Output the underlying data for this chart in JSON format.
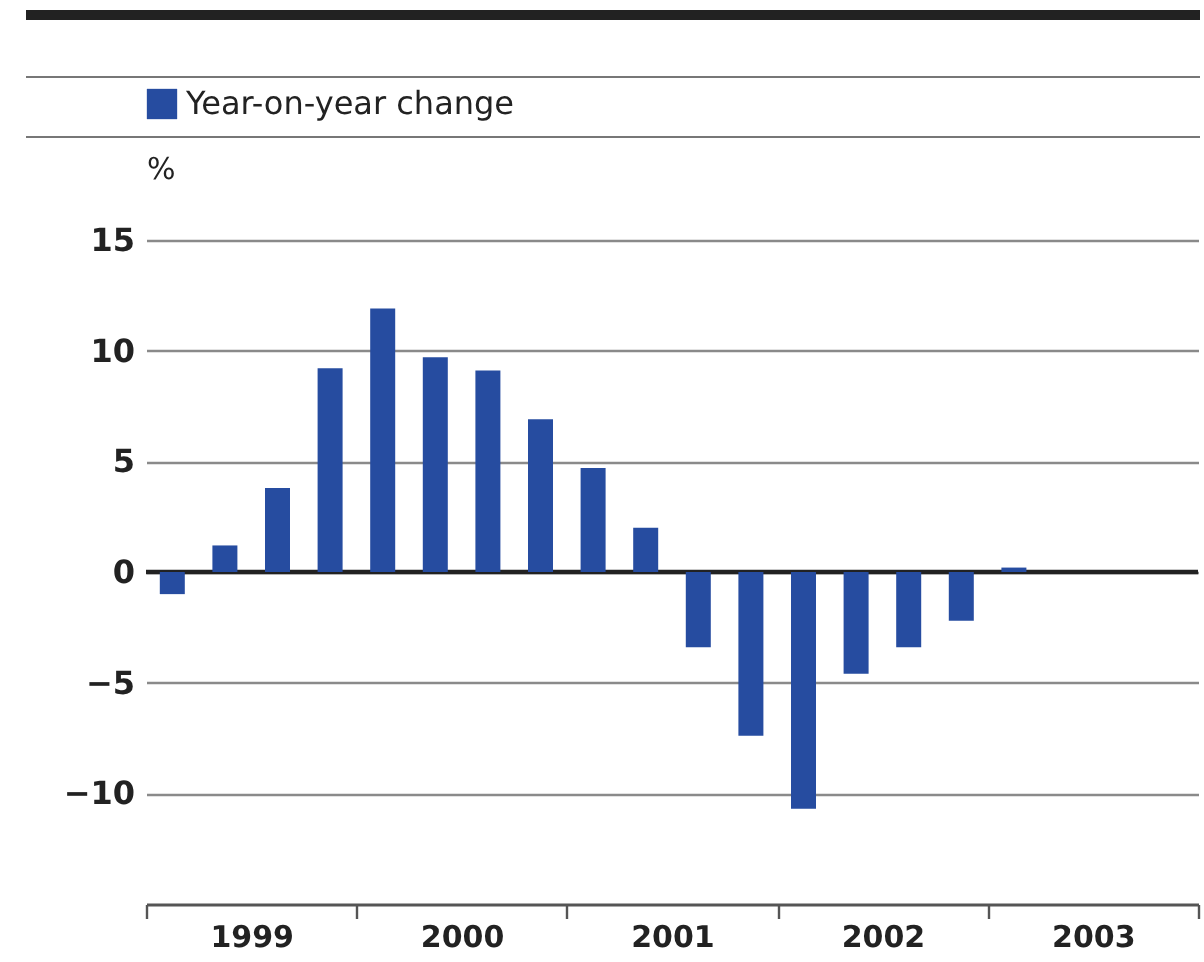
{
  "chart_data": {
    "type": "bar",
    "ylabel": "%",
    "x": [
      1999.125,
      1999.375,
      1999.625,
      1999.875,
      2000.125,
      2000.375,
      2000.625,
      2000.875,
      2001.125,
      2001.375,
      2001.625,
      2001.875,
      2002.125,
      2002.375,
      2002.625,
      2002.875,
      2003.125
    ],
    "series": [
      {
        "name": "Year-on-year change",
        "color": "#264ca0",
        "values": [
          -1.0,
          1.2,
          3.8,
          9.2,
          11.9,
          9.7,
          9.1,
          6.9,
          4.7,
          2.0,
          -3.4,
          -7.4,
          -10.7,
          -4.6,
          -3.4,
          -2.2,
          0.2
        ]
      }
    ],
    "xlim": [
      1999,
      2004
    ],
    "xticks": [
      {
        "value": 1999,
        "label": null
      },
      {
        "value": 1999.5,
        "label": "1999"
      },
      {
        "value": 2000,
        "label": null
      },
      {
        "value": 2000.5,
        "label": "2000"
      },
      {
        "value": 2001,
        "label": null
      },
      {
        "value": 2001.5,
        "label": "2001"
      },
      {
        "value": 2002,
        "label": null
      },
      {
        "value": 2002.5,
        "label": "2002"
      },
      {
        "value": 2003,
        "label": null
      },
      {
        "value": 2003.5,
        "label": "2003"
      },
      {
        "value": 2004,
        "label": null
      }
    ],
    "ylim": [
      -15,
      15
    ],
    "yticks": [
      -10,
      -5,
      0,
      5,
      10,
      15
    ],
    "ref_lines": [
      {
        "axis": "y",
        "value": 0,
        "color": "#222222"
      }
    ],
    "grid": "y",
    "legend": "top left"
  }
}
